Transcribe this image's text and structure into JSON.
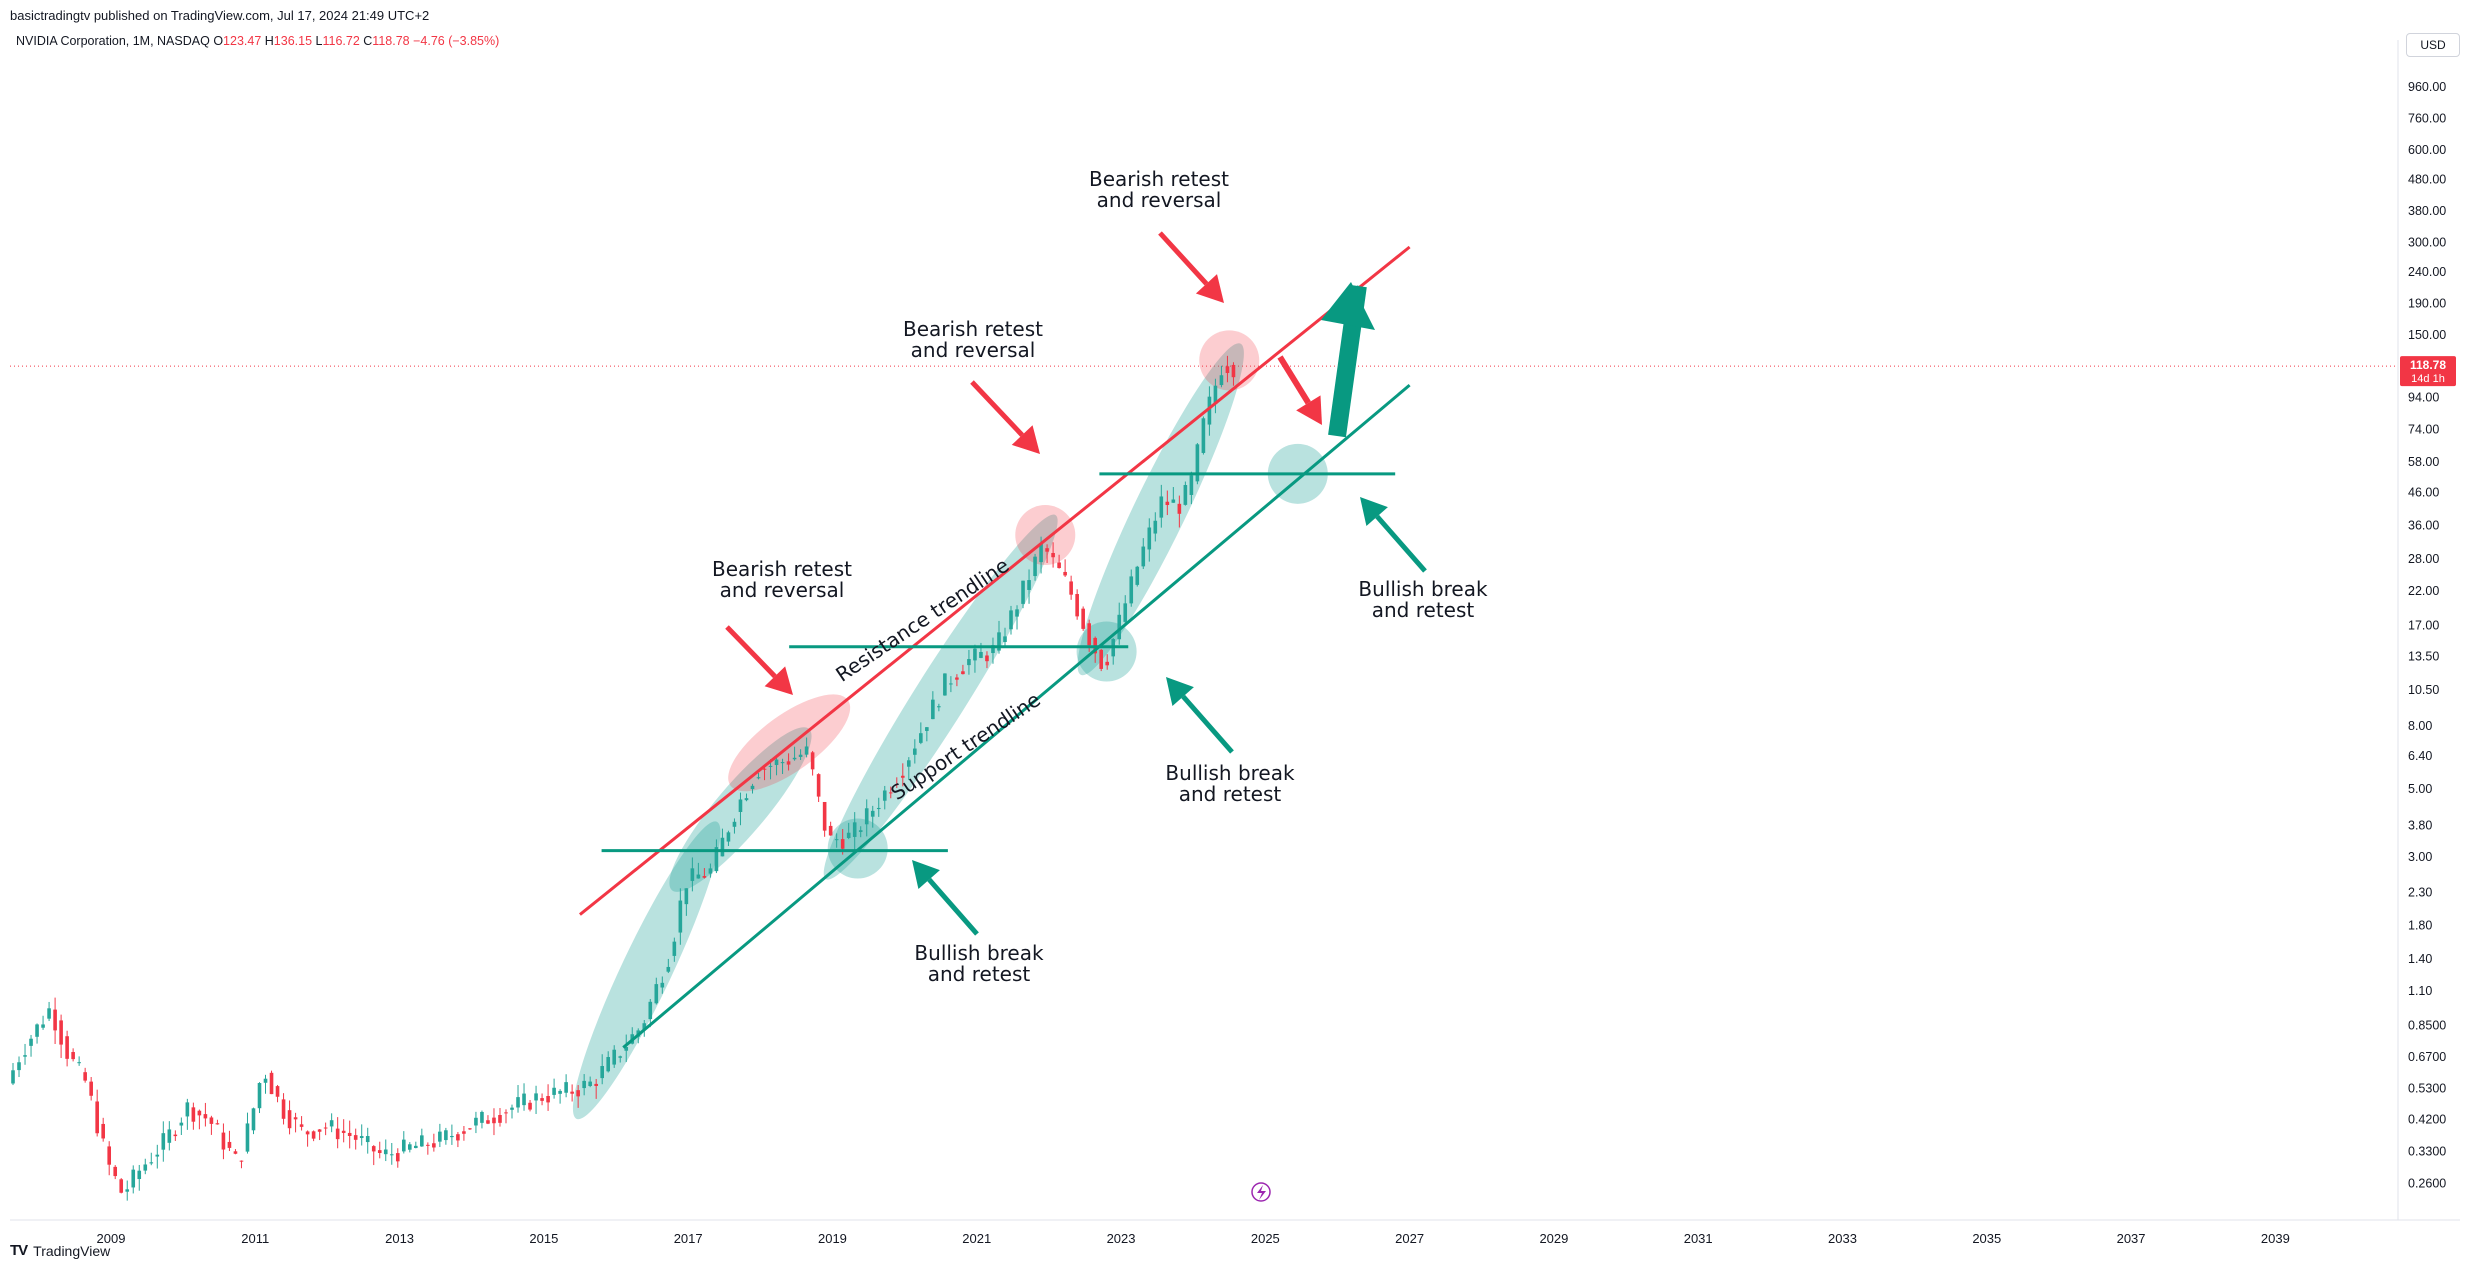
{
  "header": {
    "published": "basictradingtv published on TradingView.com, Jul 17, 2024 21:49 UTC+2",
    "symbol": "NVIDIA Corporation, 1M, NASDAQ",
    "o_label": "O",
    "o_value": "123.47",
    "h_label": "H",
    "h_value": "136.15",
    "l_label": "L",
    "l_value": "116.72",
    "c_label": "C",
    "c_value": "118.78",
    "change": "−4.76 (−3.85%)"
  },
  "currency": "USD",
  "footer": {
    "brand": "TradingView",
    "logo_mark": "TV"
  },
  "colors": {
    "up": "#26a69a",
    "down": "#f23645",
    "resistance": "#f23645",
    "support": "#089981",
    "highlight_green": "#26a69a",
    "highlight_red": "#f23645",
    "price_label": "#f23645"
  },
  "chart_data": {
    "type": "candlestick",
    "title": "NVIDIA Corporation, 1M, NASDAQ",
    "scale": "log",
    "xlim": [
      2007.6,
      2040.7
    ],
    "ylim": [
      0.21,
      1250
    ],
    "x_ticks": [
      "2009",
      "2011",
      "2013",
      "2015",
      "2017",
      "2019",
      "2021",
      "2023",
      "2025",
      "2027",
      "2029",
      "2031",
      "2033",
      "2035",
      "2037",
      "2039"
    ],
    "y_ticks": [
      "960.00",
      "760.00",
      "600.00",
      "480.00",
      "380.00",
      "300.00",
      "240.00",
      "190.00",
      "150.00",
      "118.78",
      "94.00",
      "74.00",
      "58.00",
      "46.00",
      "36.00",
      "28.00",
      "22.00",
      "17.00",
      "13.50",
      "10.50",
      "8.00",
      "6.40",
      "5.00",
      "3.80",
      "3.00",
      "2.30",
      "1.80",
      "1.40",
      "1.10",
      "0.8500",
      "0.6700",
      "0.5300",
      "0.4200",
      "0.3300",
      "0.2600"
    ],
    "current_price": {
      "value": 118.78,
      "label": "118.78",
      "countdown": "14d 1h"
    },
    "price_path": [
      [
        2007.6,
        0.55
      ],
      [
        2007.8,
        0.7
      ],
      [
        2008.2,
        0.97
      ],
      [
        2008.45,
        0.68
      ],
      [
        2008.7,
        0.55
      ],
      [
        2009.0,
        0.3
      ],
      [
        2009.2,
        0.24
      ],
      [
        2009.45,
        0.29
      ],
      [
        2009.8,
        0.36
      ],
      [
        2010.1,
        0.46
      ],
      [
        2010.4,
        0.42
      ],
      [
        2010.8,
        0.3
      ],
      [
        2011.0,
        0.44
      ],
      [
        2011.15,
        0.62
      ],
      [
        2011.4,
        0.46
      ],
      [
        2011.7,
        0.38
      ],
      [
        2012.0,
        0.4
      ],
      [
        2012.4,
        0.37
      ],
      [
        2012.8,
        0.32
      ],
      [
        2013.2,
        0.34
      ],
      [
        2013.6,
        0.36
      ],
      [
        2014.0,
        0.4
      ],
      [
        2014.5,
        0.45
      ],
      [
        2015.0,
        0.5
      ],
      [
        2015.4,
        0.52
      ],
      [
        2015.7,
        0.55
      ],
      [
        2016.0,
        0.66
      ],
      [
        2016.4,
        0.85
      ],
      [
        2016.8,
        1.5
      ],
      [
        2017.0,
        2.5
      ],
      [
        2017.35,
        2.7
      ],
      [
        2017.7,
        4.3
      ],
      [
        2018.0,
        5.8
      ],
      [
        2018.4,
        6.2
      ],
      [
        2018.7,
        6.6
      ],
      [
        2018.9,
        4.0
      ],
      [
        2019.0,
        3.4
      ],
      [
        2019.3,
        3.5
      ],
      [
        2019.6,
        4.3
      ],
      [
        2020.0,
        5.8
      ],
      [
        2020.3,
        8.0
      ],
      [
        2020.6,
        11.0
      ],
      [
        2020.9,
        13.0
      ],
      [
        2021.3,
        14.2
      ],
      [
        2021.6,
        20.0
      ],
      [
        2021.95,
        31.0
      ],
      [
        2022.3,
        23.0
      ],
      [
        2022.6,
        15.5
      ],
      [
        2022.8,
        12.5
      ],
      [
        2023.0,
        17.0
      ],
      [
        2023.3,
        28.0
      ],
      [
        2023.6,
        43.0
      ],
      [
        2023.85,
        42.0
      ],
      [
        2024.0,
        48.0
      ],
      [
        2024.2,
        80.0
      ],
      [
        2024.45,
        122.0
      ],
      [
        2024.55,
        118.78
      ]
    ],
    "trendlines": [
      {
        "name": "Resistance trendline",
        "color": "#f23645",
        "from": [
          2015.5,
          1.95
        ],
        "to": [
          2027.0,
          290
        ]
      },
      {
        "name": "Support trendline",
        "color": "#089981",
        "from": [
          2016.1,
          0.72
        ],
        "to": [
          2027.0,
          103
        ]
      }
    ],
    "horizontal_levels": [
      {
        "value": 3.15,
        "from": 2015.8,
        "to": 2020.6
      },
      {
        "value": 14.5,
        "from": 2018.4,
        "to": 2023.1
      },
      {
        "value": 53.0,
        "from": 2022.7,
        "to": 2026.8
      }
    ],
    "line_labels": [
      "Resistance trendline",
      "Support trendline"
    ],
    "annotations": [
      {
        "lines": [
          "Bearish retest",
          "and reversal"
        ]
      },
      {
        "lines": [
          "Bearish retest",
          "and reversal"
        ]
      },
      {
        "lines": [
          "Bearish retest",
          "and reversal"
        ]
      },
      {
        "lines": [
          "Bullish break",
          "and retest"
        ]
      },
      {
        "lines": [
          "Bullish break",
          "and retest"
        ]
      },
      {
        "lines": [
          "Bullish break",
          "and retest"
        ]
      }
    ]
  }
}
